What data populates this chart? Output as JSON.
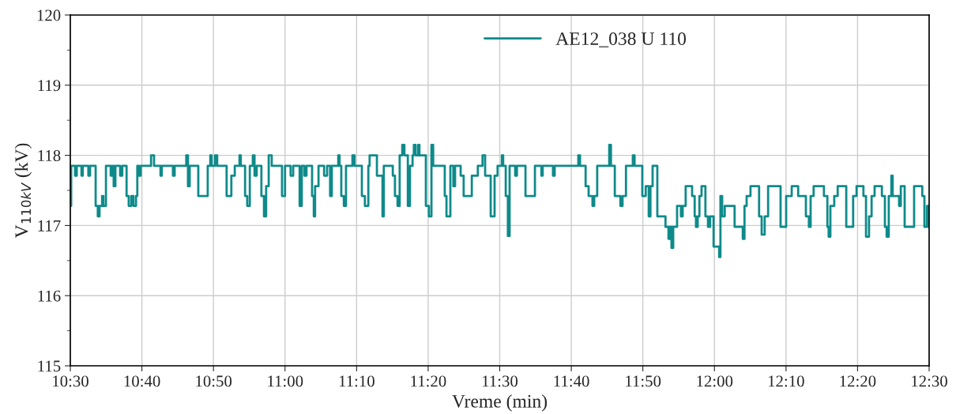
{
  "chart_data": {
    "type": "step",
    "xlabel": "Vreme (min)",
    "ylabel": "V$_{110kV}$ (kV)",
    "xlim": [
      10.5,
      12.5
    ],
    "xticks": [
      {
        "value": 10.5,
        "label": "10:30"
      },
      {
        "value": 10.6667,
        "label": "10:40"
      },
      {
        "value": 10.8333,
        "label": "10:50"
      },
      {
        "value": 11.0,
        "label": "11:00"
      },
      {
        "value": 11.1667,
        "label": "11:10"
      },
      {
        "value": 11.3333,
        "label": "11:20"
      },
      {
        "value": 11.5,
        "label": "11:30"
      },
      {
        "value": 11.6667,
        "label": "11:40"
      },
      {
        "value": 11.8333,
        "label": "11:50"
      },
      {
        "value": 12.0,
        "label": "12:00"
      },
      {
        "value": 12.1667,
        "label": "12:10"
      },
      {
        "value": 12.3333,
        "label": "12:20"
      },
      {
        "value": 12.5,
        "label": "12:30"
      }
    ],
    "ylim": [
      115,
      120
    ],
    "yticks": [
      115,
      116,
      117,
      118,
      119,
      120
    ],
    "grid": true,
    "legend": "top",
    "line_style": "solid",
    "marker": "none",
    "series": [
      {
        "name": "AE12_038 U 110",
        "color": "#0f8a8a",
        "x": [
          10.5,
          10.502,
          10.511,
          10.515,
          10.526,
          10.529,
          10.542,
          10.546,
          10.559,
          10.564,
          10.568,
          10.574,
          10.577,
          10.583,
          10.594,
          10.598,
          10.601,
          10.605,
          10.616,
          10.621,
          10.631,
          10.636,
          10.642,
          10.647,
          10.653,
          10.656,
          10.66,
          10.664,
          10.688,
          10.695,
          10.71,
          10.713,
          10.739,
          10.743,
          10.77,
          10.774,
          10.778,
          10.798,
          10.82,
          10.826,
          10.829,
          10.837,
          10.842,
          10.864,
          10.875,
          10.883,
          10.894,
          10.897,
          10.907,
          10.912,
          10.918,
          10.925,
          10.929,
          10.934,
          10.945,
          10.951,
          10.956,
          10.962,
          10.969,
          10.993,
          11.0,
          11.013,
          11.019,
          11.034,
          11.039,
          11.045,
          11.05,
          11.063,
          11.067,
          11.07,
          11.078,
          11.091,
          11.098,
          11.105,
          11.109,
          11.124,
          11.127,
          11.131,
          11.137,
          11.142,
          11.157,
          11.162,
          11.179,
          11.186,
          11.194,
          11.197,
          11.214,
          11.227,
          11.23,
          11.251,
          11.256,
          11.262,
          11.267,
          11.273,
          11.278,
          11.286,
          11.291,
          11.297,
          11.3,
          11.304,
          11.31,
          11.313,
          11.328,
          11.335,
          11.341,
          11.345,
          11.372,
          11.376,
          11.385,
          11.392,
          11.396,
          11.409,
          11.416,
          11.435,
          11.449,
          11.46,
          11.466,
          11.479,
          11.488,
          11.495,
          11.505,
          11.508,
          11.514,
          11.519,
          11.523,
          11.536,
          11.54,
          11.56,
          11.582,
          11.597,
          11.6,
          11.624,
          11.628,
          11.683,
          11.687,
          11.7,
          11.707,
          11.716,
          11.72,
          11.727,
          11.755,
          11.759,
          11.768,
          11.781,
          11.786,
          11.794,
          11.81,
          11.814,
          11.832,
          11.84,
          11.847,
          11.851,
          11.856,
          11.867,
          11.886,
          11.893,
          11.897,
          11.9,
          11.904,
          11.913,
          11.922,
          11.926,
          11.933,
          11.948,
          11.954,
          11.957,
          11.961,
          11.965,
          11.97,
          11.979,
          11.985,
          11.99,
          11.998,
          12.011,
          12.014,
          12.018,
          12.024,
          12.047,
          12.066,
          12.07,
          12.075,
          12.084,
          12.104,
          12.11,
          12.117,
          12.125,
          12.154,
          12.167,
          12.18,
          12.195,
          12.213,
          12.22,
          12.224,
          12.231,
          12.255,
          12.263,
          12.266,
          12.27,
          12.279,
          12.287,
          12.307,
          12.323,
          12.331,
          12.347,
          12.353,
          12.36,
          12.366,
          12.373,
          12.39,
          12.397,
          12.401,
          12.406,
          12.412,
          12.415,
          12.43,
          12.434,
          12.443,
          12.465,
          12.484,
          12.489,
          12.495,
          12.498,
          12.5
        ],
        "values": [
          117.28,
          117.85,
          117.71,
          117.85,
          117.71,
          117.85,
          117.71,
          117.85,
          117.28,
          117.13,
          117.28,
          117.42,
          117.28,
          117.85,
          117.71,
          117.85,
          117.56,
          117.85,
          117.71,
          117.85,
          117.42,
          117.28,
          117.42,
          117.28,
          117.42,
          117.85,
          117.71,
          117.85,
          118.0,
          117.85,
          117.71,
          117.85,
          117.71,
          117.85,
          118.0,
          117.56,
          117.85,
          117.42,
          117.85,
          118.0,
          117.85,
          118.0,
          117.85,
          117.42,
          117.71,
          117.85,
          118.0,
          117.85,
          117.42,
          117.28,
          117.85,
          118.0,
          117.71,
          117.85,
          117.42,
          117.13,
          117.56,
          118.0,
          117.85,
          117.42,
          117.85,
          117.71,
          117.85,
          117.28,
          117.85,
          117.71,
          117.85,
          117.42,
          117.13,
          117.56,
          117.85,
          117.71,
          117.85,
          117.42,
          117.85,
          118.0,
          117.85,
          117.42,
          117.28,
          117.85,
          118.0,
          117.85,
          117.42,
          117.28,
          117.85,
          118.0,
          117.71,
          117.13,
          117.85,
          117.71,
          117.42,
          117.28,
          118.0,
          118.15,
          118.0,
          117.28,
          117.85,
          118.0,
          118.15,
          118.0,
          118.15,
          118.0,
          117.28,
          117.13,
          118.15,
          117.85,
          117.42,
          117.13,
          117.85,
          117.56,
          117.85,
          117.71,
          117.42,
          117.71,
          117.85,
          118.0,
          117.71,
          117.13,
          117.71,
          117.85,
          118.0,
          117.85,
          117.42,
          116.85,
          117.85,
          117.71,
          117.85,
          117.42,
          117.85,
          117.71,
          117.85,
          117.71,
          117.85,
          118.0,
          117.85,
          117.56,
          117.42,
          117.28,
          117.42,
          117.85,
          118.15,
          117.85,
          117.42,
          117.28,
          117.42,
          117.85,
          118.0,
          117.85,
          117.42,
          117.56,
          117.13,
          117.56,
          117.85,
          117.13,
          116.98,
          116.81,
          116.98,
          116.68,
          116.98,
          117.28,
          117.13,
          117.28,
          117.56,
          117.42,
          117.13,
          116.98,
          117.13,
          117.42,
          117.56,
          117.13,
          116.98,
          117.13,
          116.7,
          116.55,
          117.42,
          117.13,
          117.28,
          116.98,
          116.81,
          117.28,
          117.42,
          117.56,
          117.13,
          116.87,
          117.13,
          117.56,
          116.98,
          117.42,
          117.56,
          117.42,
          117.13,
          116.98,
          117.42,
          117.56,
          117.42,
          116.98,
          116.84,
          117.28,
          117.42,
          117.56,
          116.98,
          117.42,
          117.56,
          117.42,
          116.84,
          117.13,
          117.42,
          117.56,
          117.42,
          116.98,
          116.84,
          117.42,
          117.71,
          117.42,
          117.28,
          117.56,
          116.98,
          117.56,
          117.42,
          116.98,
          117.28,
          116.98,
          116.98
        ]
      }
    ]
  }
}
